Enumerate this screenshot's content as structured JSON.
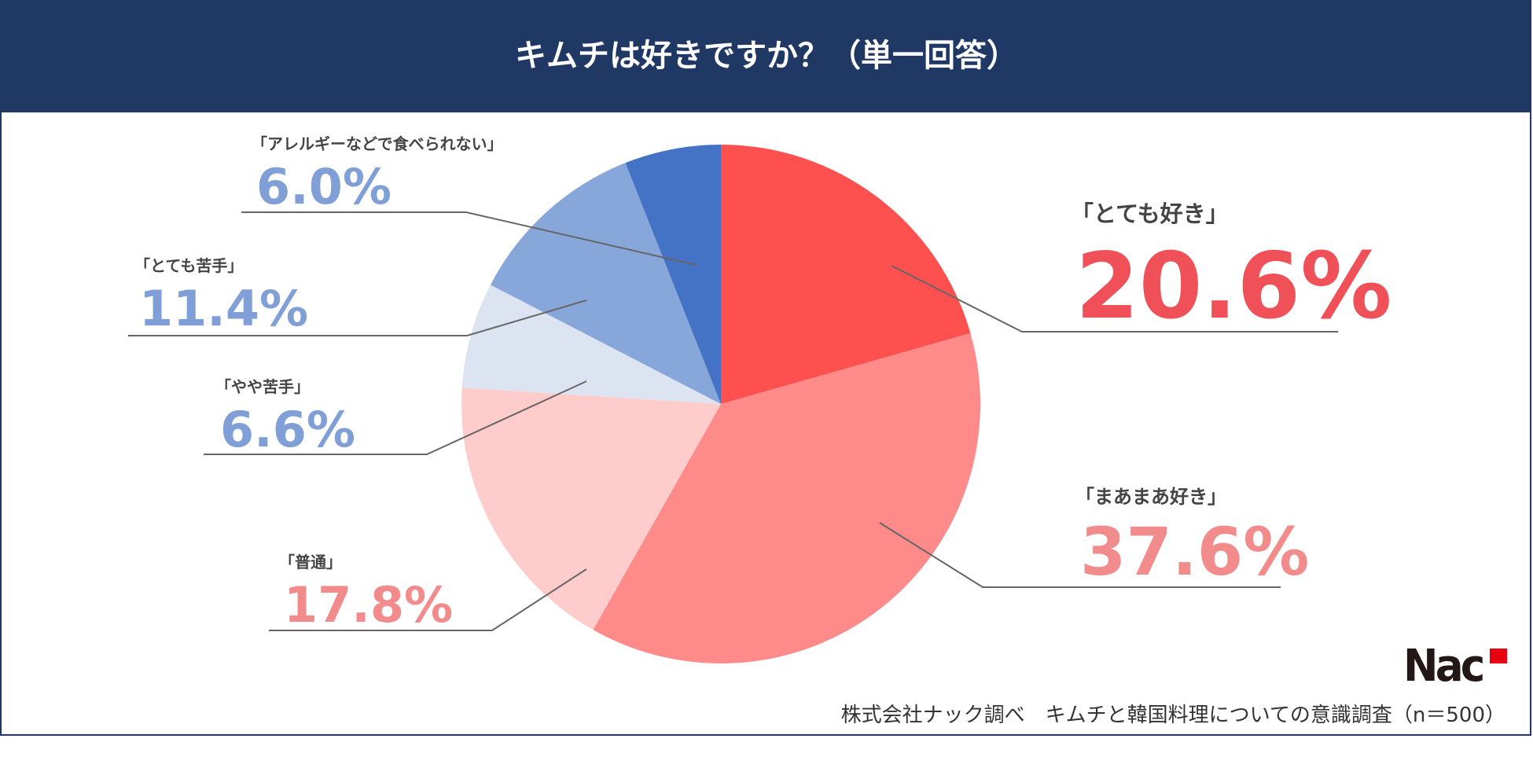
{
  "chart_data": {
    "type": "pie",
    "title": "キムチは好きですか？（単一回答）",
    "slices": [
      {
        "label": "「とても好き」",
        "value": 20.6,
        "display": "20.6%",
        "color": "#ff5050"
      },
      {
        "label": "「まあまあ好き」",
        "value": 37.6,
        "display": "37.6%",
        "color": "#ff8a8a"
      },
      {
        "label": "「普通」",
        "value": 17.8,
        "display": "17.8%",
        "color": "#ffcccc"
      },
      {
        "label": "「やや苦手」",
        "value": 6.6,
        "display": "6.6%",
        "color": "#dce4f2"
      },
      {
        "label": "「とても苦手」",
        "value": 11.4,
        "display": "11.4%",
        "color": "#87a6da"
      },
      {
        "label": "「アレルギーなどで食べられない」",
        "value": 6.0,
        "display": "6.0%",
        "color": "#4472c4"
      }
    ],
    "start": "top",
    "direction": "clockwise"
  },
  "colors": {
    "header_bg": "#203864",
    "header_text": "#ffffff",
    "red_text": "#f05058",
    "pink_text": "#f28c8c",
    "blue_text": "#7f9fd6"
  },
  "logo": {
    "text": "NAC"
  },
  "footer": {
    "source": "株式会社ナック調べ　キムチと韓国料理についての意識調査（n＝500）"
  }
}
